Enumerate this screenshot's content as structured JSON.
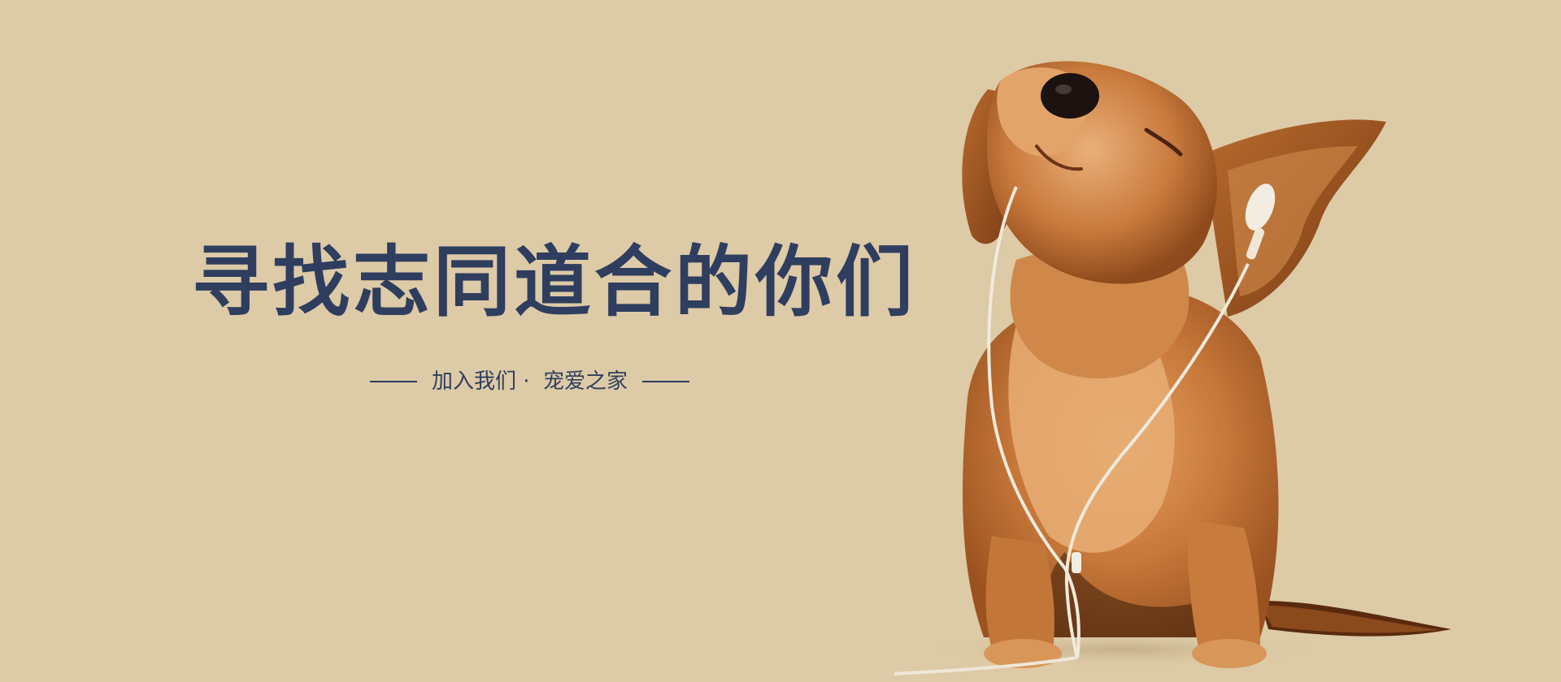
{
  "banner": {
    "headline": "寻找志同道合的你们",
    "tagline": "加入我们 ·  宠爱之家",
    "background_color": "#ddcaa6",
    "text_color": "#2f3e5f",
    "image": {
      "icon": "puppy-with-earphones-photo"
    }
  }
}
